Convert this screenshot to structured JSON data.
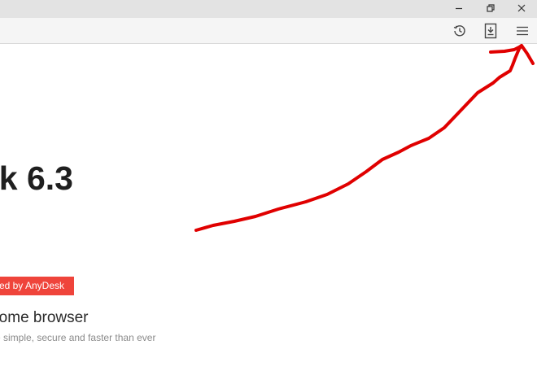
{
  "window": {
    "minimize_label": "–",
    "maximize_icon": "restore-icon",
    "close_label": "×"
  },
  "toolbar": {
    "history_icon": "history-icon",
    "download_icon": "download-icon",
    "menu_icon": "menu-icon"
  },
  "page": {
    "heading": "k 6.3",
    "badge": "ed by AnyDesk",
    "sub_heading": "le Chrome browser",
    "description": "re simple, secure and faster than ever"
  },
  "annotation": {
    "color": "#e00000",
    "description_type": "hand-drawn arrow pointing to menu icon"
  }
}
